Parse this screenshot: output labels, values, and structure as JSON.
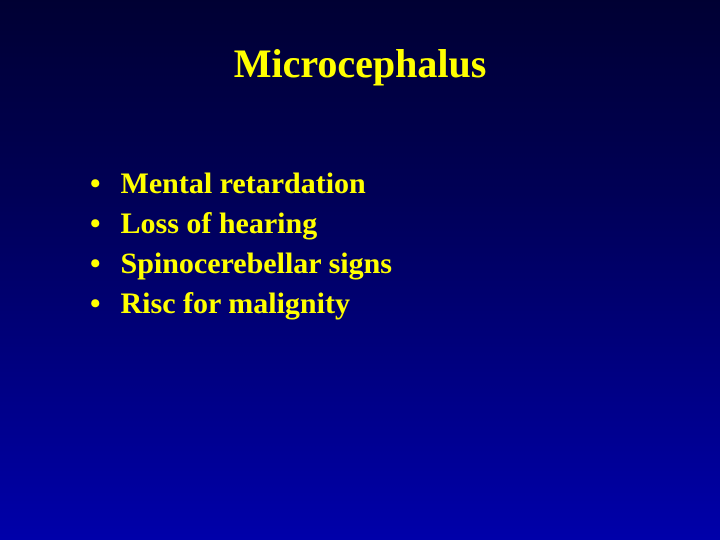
{
  "slide": {
    "background": "linear-gradient(180deg, #000033 0%, #000055 35%, #0000aa 100%)",
    "title": {
      "text": "Microcephalus",
      "color": "#ffff00",
      "fontsize": 40
    },
    "bullets": {
      "marker": "•",
      "marker_color": "#ffff00",
      "text_color": "#ffff00",
      "fontsize": 30,
      "items": [
        "Mental retardation",
        "Loss of hearing",
        "Spinocerebellar signs",
        "Risc for malignity"
      ]
    }
  }
}
